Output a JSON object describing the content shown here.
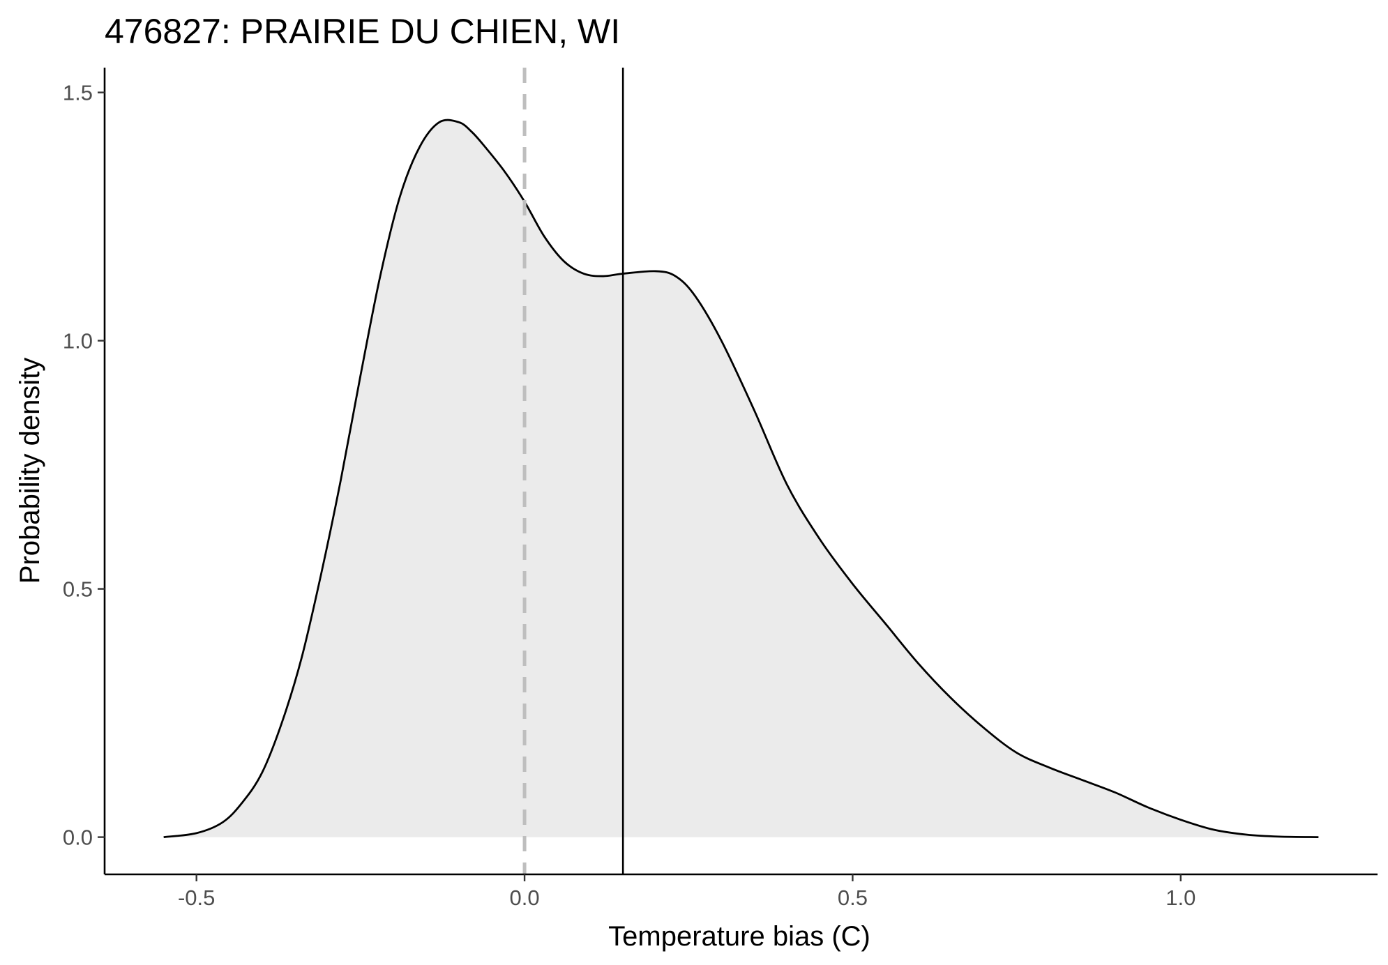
{
  "chart_data": {
    "type": "area",
    "title": "476827: PRAIRIE DU CHIEN, WI",
    "xlabel": "Temperature bias (C)",
    "ylabel": "Probability density",
    "xlim": [
      -0.64,
      1.3
    ],
    "ylim": [
      -0.075,
      1.55
    ],
    "x_ticks": [
      -0.5,
      0.0,
      0.5,
      1.0
    ],
    "x_tick_labels": [
      "-0.5",
      "0.0",
      "0.5",
      "1.0"
    ],
    "y_ticks": [
      0.0,
      0.5,
      1.0,
      1.5
    ],
    "y_tick_labels": [
      "0.0",
      "0.5",
      "1.0",
      "1.5"
    ],
    "grid": false,
    "series": [
      {
        "x": [
          -0.55,
          -0.5,
          -0.46,
          -0.43,
          -0.4,
          -0.37,
          -0.34,
          -0.31,
          -0.28,
          -0.25,
          -0.22,
          -0.19,
          -0.16,
          -0.13,
          -0.1,
          -0.08,
          -0.06,
          -0.03,
          0.0,
          0.03,
          0.06,
          0.09,
          0.12,
          0.15,
          0.2,
          0.23,
          0.26,
          0.3,
          0.35,
          0.4,
          0.45,
          0.5,
          0.55,
          0.6,
          0.65,
          0.7,
          0.75,
          0.8,
          0.85,
          0.9,
          0.95,
          1.0,
          1.05,
          1.1,
          1.15,
          1.21
        ],
        "y": [
          0.0,
          0.008,
          0.03,
          0.07,
          0.13,
          0.23,
          0.36,
          0.53,
          0.72,
          0.93,
          1.13,
          1.29,
          1.39,
          1.44,
          1.44,
          1.42,
          1.39,
          1.34,
          1.28,
          1.21,
          1.16,
          1.135,
          1.13,
          1.135,
          1.14,
          1.13,
          1.09,
          1.0,
          0.86,
          0.71,
          0.6,
          0.51,
          0.43,
          0.35,
          0.28,
          0.22,
          0.17,
          0.14,
          0.115,
          0.09,
          0.06,
          0.035,
          0.015,
          0.005,
          0.001,
          0.0
        ],
        "fill": "#ebebeb",
        "line_color": "#000000"
      }
    ],
    "reference_lines": [
      {
        "x": 0.0,
        "style": "dashed",
        "color": "#bebebe"
      },
      {
        "x": 0.15,
        "style": "solid",
        "color": "#000000"
      }
    ]
  }
}
